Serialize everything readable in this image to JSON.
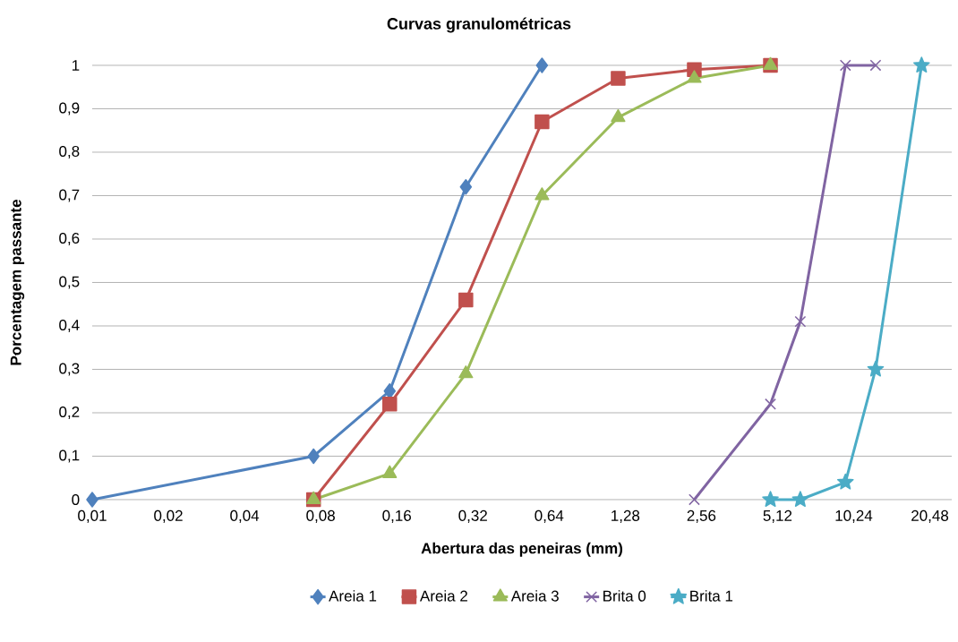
{
  "chart_data": {
    "type": "line",
    "title": "Curvas granulométricas",
    "xlabel": "Abertura das peneiras (mm)",
    "ylabel": "Porcentagem passante",
    "log": "x",
    "grid": "y",
    "legend": "bottom",
    "line_style": "solid",
    "xlim": [
      0.01,
      25
    ],
    "ylim": [
      0,
      1
    ],
    "xticks": [
      {
        "value": 0.01,
        "label": "0,01"
      },
      {
        "value": 0.02,
        "label": "0,02"
      },
      {
        "value": 0.04,
        "label": "0,04"
      },
      {
        "value": 0.08,
        "label": "0,08"
      },
      {
        "value": 0.16,
        "label": "0,16"
      },
      {
        "value": 0.32,
        "label": "0,32"
      },
      {
        "value": 0.64,
        "label": "0,64"
      },
      {
        "value": 1.28,
        "label": "1,28"
      },
      {
        "value": 2.56,
        "label": "2,56"
      },
      {
        "value": 5.12,
        "label": "5,12"
      },
      {
        "value": 10.24,
        "label": "10,24"
      },
      {
        "value": 20.48,
        "label": "20,48"
      }
    ],
    "yticks": [
      0,
      {
        "value": 0.1,
        "label": "0,1"
      },
      {
        "value": 0.2,
        "label": "0,2"
      },
      {
        "value": 0.3,
        "label": "0,3"
      },
      {
        "value": 0.4,
        "label": "0,4"
      },
      {
        "value": 0.5,
        "label": "0,5"
      },
      {
        "value": 0.6,
        "label": "0,6"
      },
      {
        "value": 0.7,
        "label": "0,7"
      },
      {
        "value": 0.8,
        "label": "0,8"
      },
      {
        "value": 0.9,
        "label": "0,9"
      },
      1
    ],
    "series": [
      {
        "name": "Areia 1",
        "color": "#4f81bd",
        "marker": "diamond",
        "x": [
          0.01,
          0.075,
          0.15,
          0.3,
          0.6
        ],
        "values": [
          0,
          0.1,
          0.25,
          0.72,
          1
        ]
      },
      {
        "name": "Areia 2",
        "color": "#c0504d",
        "marker": "square",
        "x": [
          0.075,
          0.15,
          0.3,
          0.6,
          1.2,
          2.4,
          4.8
        ],
        "values": [
          0,
          0.22,
          0.46,
          0.87,
          0.97,
          0.99,
          1
        ]
      },
      {
        "name": "Areia 3",
        "color": "#9bbb59",
        "marker": "triangle",
        "x": [
          0.075,
          0.15,
          0.3,
          0.6,
          1.2,
          2.4,
          4.8
        ],
        "values": [
          0,
          0.06,
          0.29,
          0.7,
          0.88,
          0.97,
          1
        ]
      },
      {
        "name": "Brita 0",
        "color": "#8064a2",
        "marker": "cross",
        "x": [
          2.4,
          4.8,
          6.3,
          9.5,
          12.5
        ],
        "values": [
          0,
          0.22,
          0.41,
          1,
          1
        ]
      },
      {
        "name": "Brita 1",
        "color": "#4bacc6",
        "marker": "star",
        "x": [
          4.8,
          6.3,
          9.5,
          12.5,
          19
        ],
        "values": [
          0,
          0,
          0.04,
          0.3,
          1
        ]
      }
    ]
  }
}
